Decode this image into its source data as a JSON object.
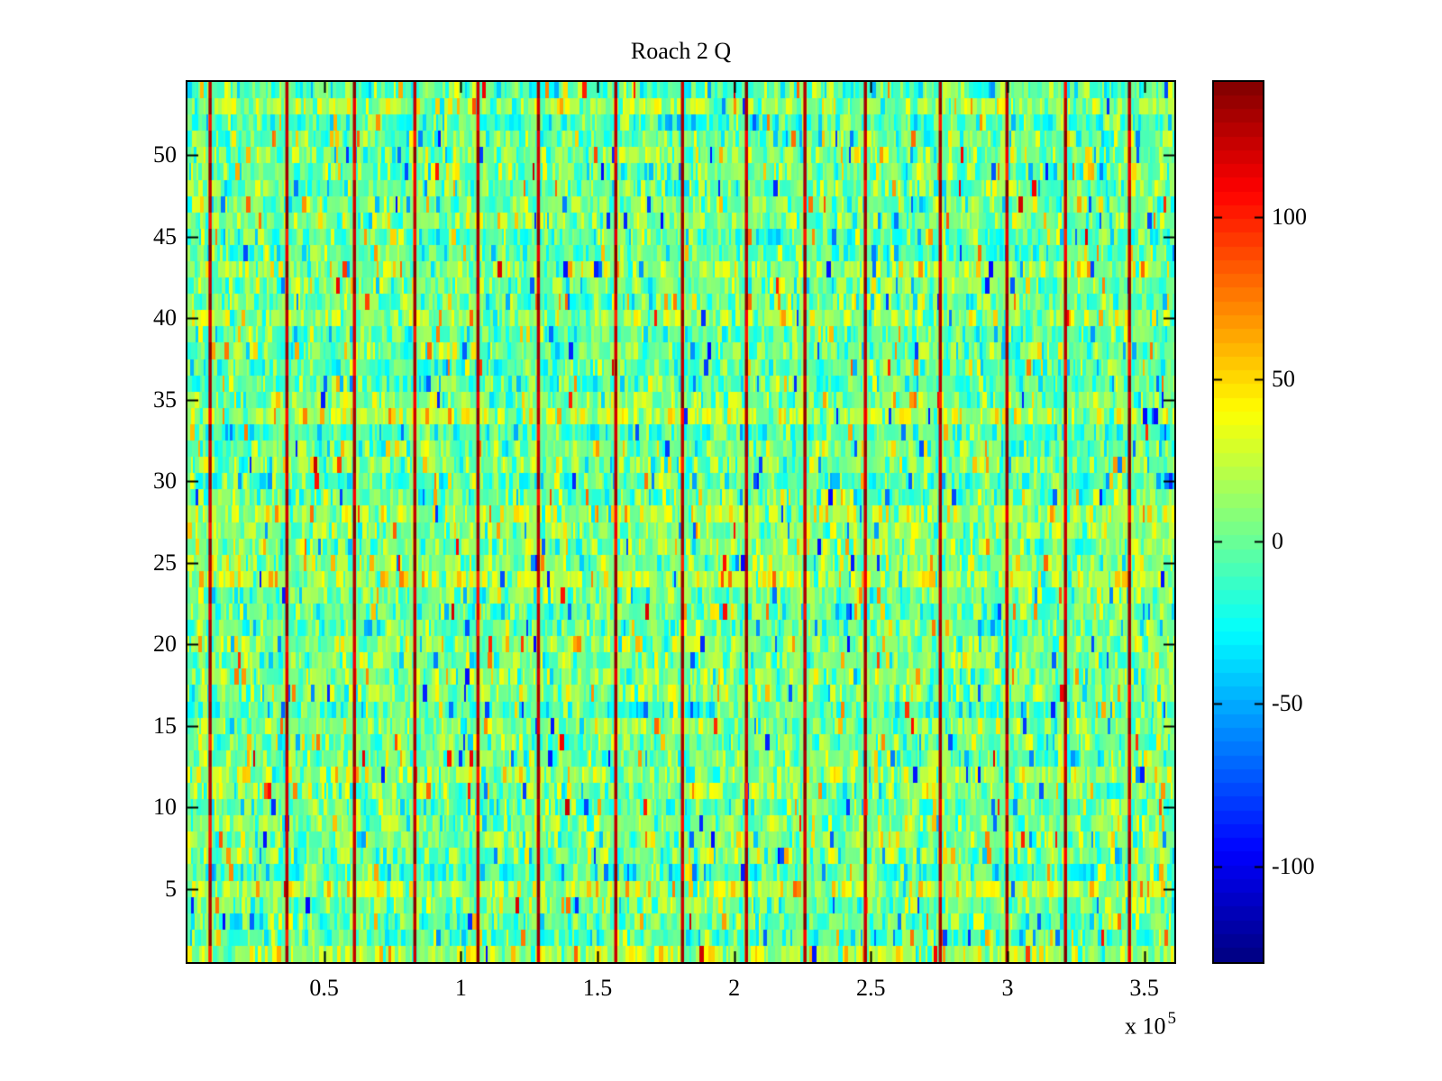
{
  "figure_title": "Roach 2 Q",
  "x_axis": {
    "tick_labels": [
      "0.5",
      "1",
      "1.5",
      "2",
      "2.5",
      "3",
      "3.5"
    ],
    "exponent_prefix": "x 10",
    "exponent": "5"
  },
  "y_axis": {
    "tick_labels": [
      "5",
      "10",
      "15",
      "20",
      "25",
      "30",
      "35",
      "40",
      "45",
      "50"
    ]
  },
  "colorbar": {
    "tick_labels": [
      "100",
      "50",
      "0",
      "-50",
      "-100"
    ]
  },
  "chart_data": {
    "type": "heatmap",
    "title": "Roach 2 Q",
    "colormap": "jet",
    "n_rows": 54,
    "x_range": [
      0,
      361000
    ],
    "y_range": [
      0.5,
      54.5
    ],
    "x_ticks": [
      50000,
      100000,
      150000,
      200000,
      250000,
      300000,
      350000
    ],
    "x_tick_labels": [
      "0.5",
      "1",
      "1.5",
      "2",
      "2.5",
      "3",
      "3.5"
    ],
    "x_scale_label": "x 10^5",
    "y_ticks": [
      5,
      10,
      15,
      20,
      25,
      30,
      35,
      40,
      45,
      50
    ],
    "clim": [
      -129.5,
      141.5
    ],
    "colorbar_ticks": [
      100,
      50,
      0,
      -50,
      -100
    ],
    "colorbar_levels": 64,
    "background_noise": {
      "distribution": "gaussian",
      "mean": 3,
      "std": 20,
      "typical_range": [
        -60,
        60
      ],
      "description": "random noise, mostly green/cyan with sparse yellow, orange and blue streaks"
    },
    "spike_columns_x": [
      8200,
      36300,
      61000,
      83100,
      106200,
      128300,
      156600,
      181000,
      204400,
      225800,
      247900,
      275300,
      299700,
      321100,
      344500
    ],
    "spike_value_range": [
      95,
      141
    ],
    "grid": false,
    "legend_position": "colorbar-right"
  }
}
